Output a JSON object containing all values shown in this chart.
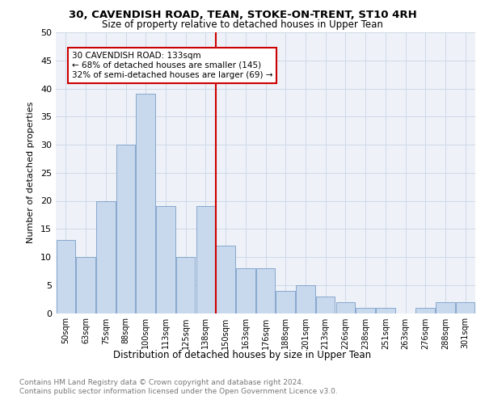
{
  "title1": "30, CAVENDISH ROAD, TEAN, STOKE-ON-TRENT, ST10 4RH",
  "title2": "Size of property relative to detached houses in Upper Tean",
  "xlabel": "Distribution of detached houses by size in Upper Tean",
  "ylabel": "Number of detached properties",
  "categories": [
    "50sqm",
    "63sqm",
    "75sqm",
    "88sqm",
    "100sqm",
    "113sqm",
    "125sqm",
    "138sqm",
    "150sqm",
    "163sqm",
    "176sqm",
    "188sqm",
    "201sqm",
    "213sqm",
    "226sqm",
    "238sqm",
    "251sqm",
    "263sqm",
    "276sqm",
    "288sqm",
    "301sqm"
  ],
  "values": [
    13,
    10,
    20,
    30,
    39,
    19,
    10,
    19,
    12,
    8,
    8,
    4,
    5,
    3,
    2,
    1,
    1,
    0,
    1,
    2,
    2
  ],
  "bar_color": "#c9d9ed",
  "bar_edge_color": "#7a9ec8",
  "vline_x": 7.5,
  "vline_color": "#cc0000",
  "annotation_text": "30 CAVENDISH ROAD: 133sqm\n← 68% of detached houses are smaller (145)\n32% of semi-detached houses are larger (69) →",
  "annotation_box_color": "#cc0000",
  "grid_color": "#d0d8e8",
  "background_color": "#eef2f8",
  "ylim": [
    0,
    50
  ],
  "yticks": [
    0,
    5,
    10,
    15,
    20,
    25,
    30,
    35,
    40,
    45,
    50
  ],
  "footnote1": "Contains HM Land Registry data © Crown copyright and database right 2024.",
  "footnote2": "Contains public sector information licensed under the Open Government Licence v3.0."
}
